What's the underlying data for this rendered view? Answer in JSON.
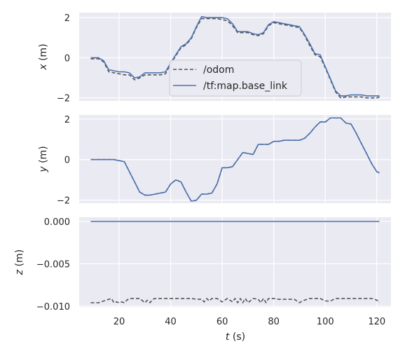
{
  "chart_data": {
    "type": "line",
    "xlabel_var": "t",
    "xlabel_unit": " (s)",
    "x_ticks": [
      20,
      40,
      60,
      80,
      100,
      120
    ],
    "xlim": [
      4.5,
      125.5
    ],
    "legend": {
      "placement": "center",
      "entries": [
        "/odom",
        "/tf:map.base_link"
      ]
    },
    "colors": {
      "odom": "#555555",
      "tf": "#4c72b0",
      "bg": "#eaeaf2",
      "grid": "#ffffff"
    },
    "panels": [
      {
        "ylabel_var": "x",
        "ylabel_unit": " (m)",
        "ylim": [
          -2.15,
          2.25
        ],
        "y_ticks": [
          2,
          0,
          -2
        ],
        "y_tick_labels": [
          "2",
          "0",
          "−2"
        ],
        "series": [
          {
            "name": "/odom",
            "style": "dashed",
            "x": [
              9,
              12,
              14,
              16,
              18,
              20,
              22,
              24,
              26,
              28,
              30,
              32,
              34,
              36,
              38,
              40,
              42,
              44,
              46,
              48,
              50,
              52,
              54,
              56,
              58,
              60,
              62,
              64,
              66,
              68,
              70,
              72,
              74,
              76,
              78,
              80,
              82,
              84,
              86,
              88,
              90,
              92,
              94,
              96,
              98,
              100,
              102,
              104,
              106,
              108,
              110,
              112,
              114,
              116,
              118,
              120,
              121
            ],
            "y": [
              -0.05,
              -0.05,
              -0.2,
              -0.7,
              -0.75,
              -0.8,
              -0.85,
              -0.85,
              -1.1,
              -1.0,
              -0.85,
              -0.85,
              -0.85,
              -0.85,
              -0.8,
              -0.3,
              0.1,
              0.5,
              0.65,
              0.95,
              1.5,
              1.95,
              1.95,
              1.95,
              1.95,
              1.9,
              1.85,
              1.6,
              1.25,
              1.25,
              1.25,
              1.15,
              1.1,
              1.2,
              1.6,
              1.75,
              1.7,
              1.65,
              1.6,
              1.55,
              1.5,
              1.1,
              0.6,
              0.15,
              0.05,
              -0.5,
              -1.1,
              -1.7,
              -2.0,
              -1.95,
              -1.95,
              -1.95,
              -1.95,
              -2.0,
              -2.0,
              -2.0,
              -1.95
            ]
          },
          {
            "name": "/tf:map.base_link",
            "style": "solid",
            "x": [
              9,
              12,
              14,
              16,
              18,
              20,
              22,
              24,
              26,
              28,
              30,
              32,
              34,
              36,
              38,
              40,
              42,
              44,
              46,
              48,
              50,
              52,
              54,
              56,
              58,
              60,
              62,
              64,
              66,
              68,
              70,
              72,
              74,
              76,
              78,
              80,
              82,
              84,
              86,
              88,
              90,
              92,
              94,
              96,
              98,
              100,
              102,
              104,
              106,
              108,
              110,
              112,
              114,
              116,
              118,
              120,
              121
            ],
            "y": [
              0.0,
              0.0,
              -0.15,
              -0.6,
              -0.65,
              -0.7,
              -0.7,
              -0.75,
              -1.0,
              -0.95,
              -0.75,
              -0.75,
              -0.75,
              -0.75,
              -0.7,
              -0.25,
              0.15,
              0.55,
              0.7,
              1.0,
              1.55,
              2.05,
              2.0,
              2.0,
              2.0,
              2.0,
              1.95,
              1.7,
              1.3,
              1.3,
              1.3,
              1.2,
              1.15,
              1.25,
              1.65,
              1.8,
              1.75,
              1.7,
              1.65,
              1.6,
              1.55,
              1.15,
              0.7,
              0.2,
              0.15,
              -0.45,
              -1.05,
              -1.65,
              -1.9,
              -1.9,
              -1.85,
              -1.85,
              -1.85,
              -1.9,
              -1.9,
              -1.9,
              -1.9
            ]
          }
        ]
      },
      {
        "ylabel_var": "y",
        "ylabel_unit": " (m)",
        "ylim": [
          -2.15,
          2.2
        ],
        "y_ticks": [
          2,
          0,
          -2
        ],
        "y_tick_labels": [
          "2",
          "0",
          "−2"
        ],
        "series": [
          {
            "name": "/odom",
            "style": "dashed",
            "x": [
              9,
              12,
              16,
              18,
              20,
              22,
              24,
              26,
              28,
              30,
              32,
              34,
              36,
              38,
              40,
              42,
              44,
              46,
              48,
              50,
              52,
              54,
              56,
              58,
              60,
              62,
              64,
              66,
              68,
              70,
              72,
              74,
              76,
              78,
              80,
              82,
              84,
              86,
              88,
              90,
              92,
              94,
              96,
              98,
              100,
              102,
              104,
              106,
              108,
              110,
              112,
              114,
              116,
              118,
              120,
              121
            ],
            "y": [
              0.0,
              0.0,
              0.0,
              0.0,
              -0.05,
              -0.1,
              -0.6,
              -1.1,
              -1.6,
              -1.75,
              -1.75,
              -1.7,
              -1.65,
              -1.6,
              -1.2,
              -1.0,
              -1.1,
              -1.6,
              -2.05,
              -2.0,
              -1.7,
              -1.7,
              -1.65,
              -1.2,
              -0.4,
              -0.4,
              -0.35,
              0.0,
              0.35,
              0.3,
              0.25,
              0.75,
              0.75,
              0.75,
              0.9,
              0.9,
              0.95,
              0.95,
              0.95,
              0.95,
              1.05,
              1.3,
              1.6,
              1.85,
              1.85,
              2.05,
              2.05,
              2.05,
              1.8,
              1.75,
              1.3,
              0.8,
              0.3,
              -0.2,
              -0.6,
              -0.65
            ]
          },
          {
            "name": "/tf:map.base_link",
            "style": "solid",
            "x": [
              9,
              12,
              16,
              18,
              20,
              22,
              24,
              26,
              28,
              30,
              32,
              34,
              36,
              38,
              40,
              42,
              44,
              46,
              48,
              50,
              52,
              54,
              56,
              58,
              60,
              62,
              64,
              66,
              68,
              70,
              72,
              74,
              76,
              78,
              80,
              82,
              84,
              86,
              88,
              90,
              92,
              94,
              96,
              98,
              100,
              102,
              104,
              106,
              108,
              110,
              112,
              114,
              116,
              118,
              120,
              121
            ],
            "y": [
              0.0,
              0.0,
              0.0,
              0.0,
              -0.05,
              -0.1,
              -0.6,
              -1.1,
              -1.6,
              -1.75,
              -1.75,
              -1.7,
              -1.65,
              -1.6,
              -1.2,
              -1.0,
              -1.1,
              -1.6,
              -2.05,
              -2.0,
              -1.7,
              -1.7,
              -1.65,
              -1.2,
              -0.4,
              -0.4,
              -0.35,
              0.0,
              0.35,
              0.3,
              0.25,
              0.75,
              0.75,
              0.75,
              0.9,
              0.9,
              0.95,
              0.95,
              0.95,
              0.95,
              1.05,
              1.3,
              1.6,
              1.85,
              1.85,
              2.05,
              2.05,
              2.05,
              1.8,
              1.75,
              1.3,
              0.8,
              0.3,
              -0.2,
              -0.6,
              -0.65
            ]
          }
        ]
      },
      {
        "ylabel_var": "z",
        "ylabel_unit": " (m)",
        "ylim": [
          -0.0101,
          0.0005
        ],
        "y_ticks": [
          0.0,
          -0.005,
          -0.01
        ],
        "y_tick_labels": [
          "0.000",
          "−0.005",
          "−0.010"
        ],
        "series": [
          {
            "name": "/odom",
            "style": "dashed",
            "x": [
              9,
              12,
              14,
              15,
              16,
              17,
              18,
              19,
              20,
              21,
              22,
              23,
              24,
              26,
              28,
              30,
              31,
              32,
              33,
              34,
              36,
              38,
              40,
              42,
              44,
              46,
              48,
              50,
              52,
              53,
              54,
              55,
              56,
              57,
              58,
              60,
              62,
              64,
              65,
              66,
              67,
              68,
              69,
              70,
              72,
              74,
              75,
              76,
              77,
              78,
              80,
              82,
              84,
              86,
              88,
              90,
              91,
              92,
              94,
              96,
              98,
              100,
              102,
              104,
              106,
              108,
              110,
              112,
              114,
              116,
              118,
              120,
              121
            ],
            "y": [
              -0.0096,
              -0.0096,
              -0.0094,
              -0.0093,
              -0.0092,
              -0.0091,
              -0.0096,
              -0.0095,
              -0.0096,
              -0.0095,
              -0.0096,
              -0.0093,
              -0.0091,
              -0.0091,
              -0.0091,
              -0.0096,
              -0.0093,
              -0.0096,
              -0.0092,
              -0.0091,
              -0.0091,
              -0.0091,
              -0.0091,
              -0.0091,
              -0.0091,
              -0.0091,
              -0.0091,
              -0.0092,
              -0.0092,
              -0.0095,
              -0.0091,
              -0.0094,
              -0.0091,
              -0.0091,
              -0.0091,
              -0.0095,
              -0.0091,
              -0.0095,
              -0.0091,
              -0.0096,
              -0.0091,
              -0.0096,
              -0.0091,
              -0.0096,
              -0.0091,
              -0.0092,
              -0.0096,
              -0.0091,
              -0.0096,
              -0.0091,
              -0.0091,
              -0.0092,
              -0.0092,
              -0.0092,
              -0.0092,
              -0.0096,
              -0.0094,
              -0.0093,
              -0.0091,
              -0.0091,
              -0.0091,
              -0.0094,
              -0.0094,
              -0.0091,
              -0.0091,
              -0.0091,
              -0.0091,
              -0.0091,
              -0.0091,
              -0.0091,
              -0.0091,
              -0.0093,
              -0.0096
            ]
          },
          {
            "name": "/tf:map.base_link",
            "style": "solid",
            "x": [
              9,
              121
            ],
            "y": [
              0.0,
              0.0
            ]
          }
        ]
      }
    ]
  }
}
